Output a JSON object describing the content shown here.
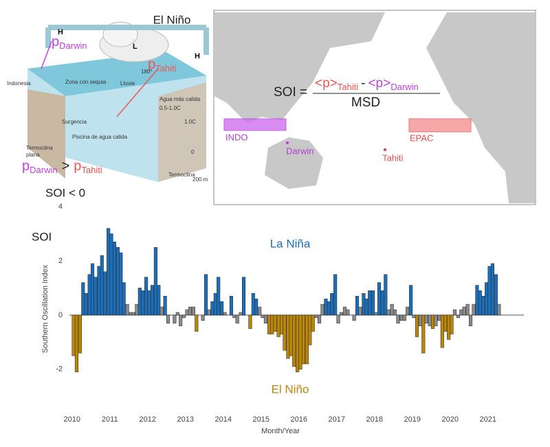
{
  "diagram": {
    "title": "El Niño",
    "high_left": "H",
    "low": "L",
    "high_right": "H",
    "p_darwin": {
      "p": "p",
      "sub": "Darwin"
    },
    "p_tahiti": {
      "p": "p",
      "sub": "Tahiti"
    },
    "labels": [
      "Indonesia",
      "Zona con sequia",
      "Lluvia",
      "180°",
      "Agua más calida",
      "0.5-1.0C",
      "1.0C",
      "Surgencia",
      "Piscina de agua calida",
      "Termoclina",
      "plana",
      "Termoclina",
      "0",
      "200 m"
    ],
    "relation": {
      "left": "p",
      "left_sub": "Darwin",
      "op": ">",
      "right": "p",
      "right_sub": "Tahiti"
    },
    "condition": "SOI < 0"
  },
  "map": {
    "formula": {
      "lhs": "SOI =",
      "p1": "<p>",
      "sub1": "Tahiti",
      "minus": "-",
      "p2": "<p>",
      "sub2": "Darwin",
      "denominator": "MSD"
    },
    "regions": [
      "INDO",
      "EPAC"
    ],
    "stations": [
      "Darwin",
      "Tahiti"
    ]
  },
  "chart_data": {
    "type": "bar",
    "y_label_short": "SOI",
    "ylabel": "Southern Oscillation Index",
    "xlabel": "Month/Year",
    "annotations": [
      "La Niña",
      "El Niño"
    ],
    "xlim": [
      2009.75,
      2021.95
    ],
    "xticks": [
      2010,
      2011,
      2012,
      2013,
      2014,
      2015,
      2016,
      2017,
      2018,
      2019,
      2020,
      2021
    ],
    "ylim": [
      -3.6,
      4
    ],
    "yticks": [
      -2,
      0,
      2,
      4
    ],
    "grid": false,
    "x": [
      2010.0,
      2010.08,
      2010.17,
      2010.25,
      2010.33,
      2010.42,
      2010.5,
      2010.58,
      2010.67,
      2010.75,
      2010.83,
      2010.92,
      2011.0,
      2011.08,
      2011.17,
      2011.25,
      2011.33,
      2011.42,
      2011.5,
      2011.58,
      2011.67,
      2011.75,
      2011.83,
      2011.92,
      2012.0,
      2012.08,
      2012.17,
      2012.25,
      2012.33,
      2012.42,
      2012.5,
      2012.58,
      2012.67,
      2012.75,
      2012.83,
      2012.92,
      2013.0,
      2013.08,
      2013.17,
      2013.25,
      2013.33,
      2013.42,
      2013.5,
      2013.58,
      2013.67,
      2013.75,
      2013.83,
      2013.92,
      2014.0,
      2014.08,
      2014.17,
      2014.25,
      2014.33,
      2014.42,
      2014.5,
      2014.58,
      2014.67,
      2014.75,
      2014.83,
      2014.92,
      2015.0,
      2015.08,
      2015.17,
      2015.25,
      2015.33,
      2015.42,
      2015.5,
      2015.58,
      2015.67,
      2015.75,
      2015.83,
      2015.92,
      2016.0,
      2016.08,
      2016.17,
      2016.25,
      2016.33,
      2016.42,
      2016.5,
      2016.58,
      2016.67,
      2016.75,
      2016.83,
      2016.92,
      2017.0,
      2017.08,
      2017.17,
      2017.25,
      2017.33,
      2017.42,
      2017.5,
      2017.58,
      2017.67,
      2017.75,
      2017.83,
      2017.92,
      2018.0,
      2018.08,
      2018.17,
      2018.25,
      2018.33,
      2018.42,
      2018.5,
      2018.58,
      2018.67,
      2018.75,
      2018.83,
      2018.92,
      2019.0,
      2019.08,
      2019.17,
      2019.25,
      2019.33,
      2019.42,
      2019.5,
      2019.58,
      2019.67,
      2019.75,
      2019.83,
      2019.92,
      2020.0,
      2020.08,
      2020.17,
      2020.25,
      2020.33,
      2020.42,
      2020.5,
      2020.58,
      2020.67,
      2020.75,
      2020.83,
      2020.92,
      2021.0,
      2021.08,
      2021.17,
      2021.25
    ],
    "values": [
      -1.5,
      -2.1,
      -1.4,
      1.2,
      0.8,
      1.5,
      1.9,
      1.4,
      1.8,
      2.2,
      1.6,
      3.2,
      3.0,
      2.7,
      2.5,
      2.3,
      1.2,
      0.4,
      0.1,
      0.1,
      0.4,
      1.0,
      0.9,
      1.4,
      0.9,
      1.1,
      2.5,
      1.1,
      0.3,
      0.7,
      -0.3,
      0.0,
      -0.3,
      0.1,
      -0.4,
      -0.1,
      0.2,
      0.3,
      0.3,
      -0.6,
      0.0,
      -0.2,
      1.5,
      0.2,
      0.5,
      0.8,
      1.4,
      0.5,
      0.1,
      0.0,
      0.7,
      -0.1,
      -0.3,
      0.1,
      1.4,
      0.0,
      -0.5,
      0.8,
      0.6,
      0.3,
      -0.1,
      -0.3,
      -0.7,
      -0.7,
      -0.6,
      -0.8,
      -0.7,
      -1.3,
      -1.6,
      -1.5,
      -1.9,
      -2.1,
      -2.0,
      -1.8,
      -1.8,
      -1.1,
      -0.6,
      -0.1,
      -0.3,
      0.4,
      0.6,
      0.5,
      0.8,
      1.5,
      -0.3,
      0.1,
      0.3,
      0.2,
      0.0,
      -0.2,
      0.7,
      0.3,
      0.8,
      0.6,
      0.9,
      0.9,
      0.1,
      1.2,
      0.9,
      1.5,
      0.2,
      0.4,
      0.2,
      -0.3,
      -0.2,
      -0.2,
      0.3,
      1.1,
      -0.1,
      -0.8,
      -0.4,
      -1.4,
      -0.3,
      -0.4,
      -0.5,
      -0.4,
      -0.2,
      -1.2,
      -0.6,
      -0.9,
      -0.7,
      0.2,
      -0.1,
      0.2,
      0.3,
      0.4,
      -0.4,
      0.4,
      1.1,
      0.9,
      0.7,
      1.2,
      1.8,
      1.9,
      1.5,
      0.4
    ],
    "colors": [
      "#b8860b",
      "#b8860b",
      "#b8860b",
      "#1f6db5",
      "#1f6db5",
      "#1f6db5",
      "#1f6db5",
      "#1f6db5",
      "#1f6db5",
      "#1f6db5",
      "#1f6db5",
      "#1f6db5",
      "#1f6db5",
      "#1f6db5",
      "#1f6db5",
      "#1f6db5",
      "#1f6db5",
      "#8a8a8a",
      "#8a8a8a",
      "#8a8a8a",
      "#8a8a8a",
      "#1f6db5",
      "#1f6db5",
      "#1f6db5",
      "#1f6db5",
      "#1f6db5",
      "#1f6db5",
      "#1f6db5",
      "#8a8a8a",
      "#1f6db5",
      "#8a8a8a",
      "#8a8a8a",
      "#8a8a8a",
      "#8a8a8a",
      "#8a8a8a",
      "#8a8a8a",
      "#8a8a8a",
      "#8a8a8a",
      "#8a8a8a",
      "#b8860b",
      "#8a8a8a",
      "#8a8a8a",
      "#1f6db5",
      "#8a8a8a",
      "#1f6db5",
      "#1f6db5",
      "#1f6db5",
      "#1f6db5",
      "#8a8a8a",
      "#8a8a8a",
      "#1f6db5",
      "#8a8a8a",
      "#8a8a8a",
      "#8a8a8a",
      "#1f6db5",
      "#8a8a8a",
      "#b8860b",
      "#1f6db5",
      "#1f6db5",
      "#8a8a8a",
      "#8a8a8a",
      "#8a8a8a",
      "#b8860b",
      "#b8860b",
      "#b8860b",
      "#b8860b",
      "#b8860b",
      "#b8860b",
      "#b8860b",
      "#b8860b",
      "#b8860b",
      "#b8860b",
      "#b8860b",
      "#b8860b",
      "#b8860b",
      "#b8860b",
      "#b8860b",
      "#8a8a8a",
      "#8a8a8a",
      "#8a8a8a",
      "#1f6db5",
      "#1f6db5",
      "#1f6db5",
      "#1f6db5",
      "#8a8a8a",
      "#8a8a8a",
      "#8a8a8a",
      "#8a8a8a",
      "#8a8a8a",
      "#8a8a8a",
      "#1f6db5",
      "#8a8a8a",
      "#1f6db5",
      "#1f6db5",
      "#1f6db5",
      "#1f6db5",
      "#8a8a8a",
      "#1f6db5",
      "#1f6db5",
      "#1f6db5",
      "#8a8a8a",
      "#8a8a8a",
      "#8a8a8a",
      "#8a8a8a",
      "#8a8a8a",
      "#8a8a8a",
      "#8a8a8a",
      "#1f6db5",
      "#8a8a8a",
      "#b8860b",
      "#8a8a8a",
      "#b8860b",
      "#8a8a8a",
      "#8a8a8a",
      "#b8860b",
      "#8a8a8a",
      "#8a8a8a",
      "#b8860b",
      "#b8860b",
      "#b8860b",
      "#b8860b",
      "#8a8a8a",
      "#8a8a8a",
      "#8a8a8a",
      "#8a8a8a",
      "#8a8a8a",
      "#8a8a8a",
      "#8a8a8a",
      "#1f6db5",
      "#1f6db5",
      "#1f6db5",
      "#1f6db5",
      "#1f6db5",
      "#1f6db5",
      "#1f6db5",
      "#8a8a8a"
    ]
  }
}
